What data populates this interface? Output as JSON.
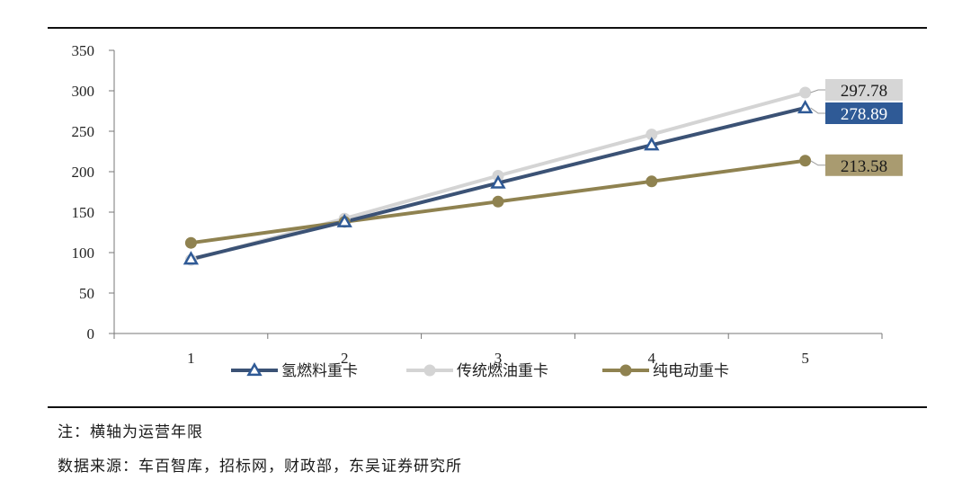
{
  "chart_data": {
    "type": "line",
    "x": [
      1,
      2,
      3,
      4,
      5
    ],
    "ylim": [
      0,
      350
    ],
    "ytick_step": 50,
    "xlabel": "",
    "ylabel": "",
    "title": "",
    "legend_position": "bottom",
    "series": [
      {
        "name": "氢燃料重卡",
        "values": [
          92,
          138,
          186,
          233,
          278.89
        ],
        "color": "#3b5275",
        "marker": "triangle",
        "end_label": "278.89",
        "end_label_bg": "#2f5a96",
        "end_label_fg": "#ffffff"
      },
      {
        "name": "传统燃油重卡",
        "values": [
          91,
          142,
          195,
          246,
          297.78
        ],
        "color": "#d4d4d4",
        "marker": "circle",
        "end_label": "297.78",
        "end_label_bg": "#d6d6d6",
        "end_label_fg": "#1a1a1a"
      },
      {
        "name": "纯电动重卡",
        "values": [
          112,
          138,
          163,
          188,
          213.58
        ],
        "color": "#8f8250",
        "marker": "circle",
        "end_label": "213.58",
        "end_label_bg": "#a99b70",
        "end_label_fg": "#1a1a1a"
      }
    ]
  },
  "notes": {
    "axis_note": "注：横轴为运营年限",
    "source": "数据来源：车百智库，招标网，财政部，东吴证券研究所"
  }
}
